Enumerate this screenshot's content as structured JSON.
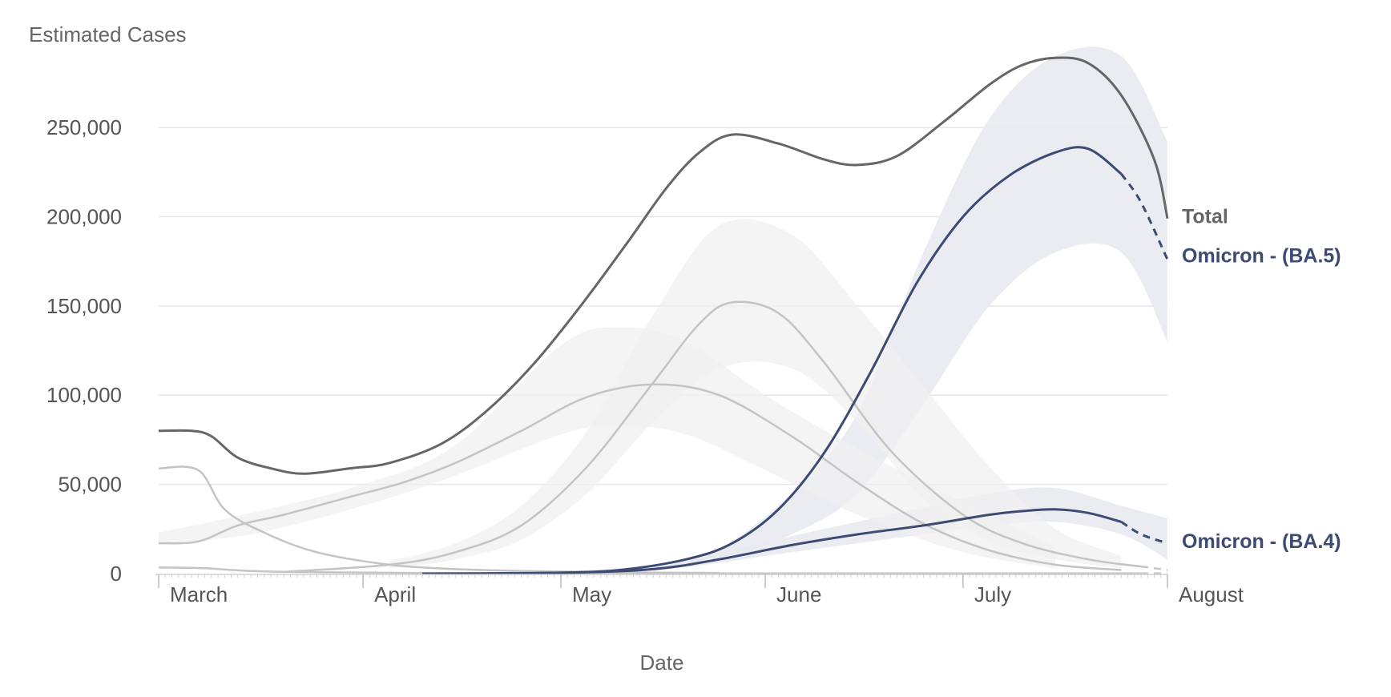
{
  "chart_data": {
    "type": "line",
    "ylabel": "Estimated Cases",
    "xlabel": "Date",
    "ylim": [
      0,
      290000
    ],
    "y_ticks": [
      0,
      50000,
      100000,
      150000,
      200000,
      250000
    ],
    "y_tick_labels": [
      "0",
      "50,000",
      "100,000",
      "150,000",
      "200,000",
      "250,000"
    ],
    "x_range": [
      "2022-03-01",
      "2022-08-01"
    ],
    "x_ticks": [
      "2022-03-01",
      "2022-04-01",
      "2022-05-01",
      "2022-06-01",
      "2022-07-01",
      "2022-08-01"
    ],
    "x_tick_labels": [
      "March",
      "April",
      "May",
      "June",
      "July",
      "August"
    ],
    "grid": true,
    "legend": "none",
    "colors": {
      "total": "#666666",
      "highlight": "#3d4a72",
      "other": "#c4c4c4",
      "band_highlight": "#e8eaf0",
      "band_other": "#f0f0f0"
    },
    "series": [
      {
        "name": "Total",
        "style": "total",
        "x": [
          "2022-03-01",
          "2022-03-06",
          "2022-03-09",
          "2022-03-13",
          "2022-03-18",
          "2022-03-23",
          "2022-03-30",
          "2022-04-05",
          "2022-04-13",
          "2022-04-20",
          "2022-04-27",
          "2022-05-04",
          "2022-05-11",
          "2022-05-17",
          "2022-05-22",
          "2022-05-27",
          "2022-06-03",
          "2022-06-10",
          "2022-06-15",
          "2022-06-21",
          "2022-06-28",
          "2022-07-05",
          "2022-07-10",
          "2022-07-15",
          "2022-07-20",
          "2022-07-25",
          "2022-07-30",
          "2022-08-01"
        ],
        "y": [
          80000,
          80000,
          77000,
          65000,
          59000,
          56000,
          59000,
          62000,
          73000,
          92000,
          118000,
          150000,
          185000,
          216000,
          236000,
          246000,
          241000,
          232000,
          229000,
          234000,
          253000,
          274000,
          285000,
          289000,
          286000,
          268000,
          232000,
          199000
        ],
        "dashed_from": null
      },
      {
        "name": "Omicron - (BA.5)",
        "style": "highlight",
        "x": [
          "2022-04-10",
          "2022-04-20",
          "2022-05-01",
          "2022-05-10",
          "2022-05-20",
          "2022-05-27",
          "2022-06-03",
          "2022-06-10",
          "2022-06-17",
          "2022-06-24",
          "2022-07-01",
          "2022-07-08",
          "2022-07-15",
          "2022-07-20",
          "2022-07-25",
          "2022-07-28",
          "2022-08-01"
        ],
        "y": [
          0,
          0,
          500,
          2000,
          8000,
          17000,
          36000,
          68000,
          113000,
          163000,
          200000,
          223000,
          236000,
          238000,
          224000,
          208000,
          176000
        ],
        "dashed_from": "2022-07-25"
      },
      {
        "name": "Omicron - (BA.4)",
        "style": "highlight",
        "x": [
          "2022-04-10",
          "2022-05-01",
          "2022-05-15",
          "2022-05-25",
          "2022-06-05",
          "2022-06-15",
          "2022-06-25",
          "2022-07-05",
          "2022-07-10",
          "2022-07-15",
          "2022-07-20",
          "2022-07-25",
          "2022-07-28",
          "2022-08-01"
        ],
        "y": [
          0,
          500,
          2500,
          8000,
          16000,
          22000,
          27000,
          33000,
          35000,
          36000,
          34000,
          29000,
          22000,
          17000
        ],
        "dashed_from": "2022-07-25"
      },
      {
        "name": "",
        "style": "other",
        "x": [
          "2022-03-01",
          "2022-03-07",
          "2022-03-13",
          "2022-03-20",
          "2022-03-30",
          "2022-04-07",
          "2022-04-15",
          "2022-04-25",
          "2022-05-05",
          "2022-05-15",
          "2022-05-25",
          "2022-06-05",
          "2022-06-15",
          "2022-06-25",
          "2022-07-05",
          "2022-07-15",
          "2022-07-25"
        ],
        "y": [
          17000,
          18000,
          27000,
          33000,
          43000,
          51000,
          62000,
          80000,
          99000,
          106000,
          100000,
          77000,
          51000,
          28000,
          13000,
          5000,
          2000
        ],
        "dashed_from": null
      },
      {
        "name": "",
        "style": "other",
        "x": [
          "2022-03-01",
          "2022-03-07",
          "2022-03-11",
          "2022-03-17",
          "2022-03-25",
          "2022-04-05",
          "2022-04-15",
          "2022-04-25",
          "2022-05-05",
          "2022-05-15",
          "2022-05-25"
        ],
        "y": [
          59000,
          58000,
          36000,
          23000,
          12000,
          5000,
          2500,
          1500,
          1000,
          600,
          400
        ],
        "dashed_from": null
      },
      {
        "name": "",
        "style": "other",
        "x": [
          "2022-03-20",
          "2022-04-05",
          "2022-04-15",
          "2022-04-25",
          "2022-05-05",
          "2022-05-15",
          "2022-05-22",
          "2022-05-27",
          "2022-06-03",
          "2022-06-10",
          "2022-06-20",
          "2022-07-01",
          "2022-07-10",
          "2022-07-20",
          "2022-07-28",
          "2022-08-01"
        ],
        "y": [
          1000,
          5000,
          12000,
          27000,
          60000,
          107000,
          140000,
          152000,
          146000,
          118000,
          69000,
          33000,
          17000,
          8000,
          4000,
          2000
        ],
        "dashed_from": "2022-07-28"
      },
      {
        "name": "",
        "style": "other",
        "x": [
          "2022-03-01",
          "2022-03-08",
          "2022-03-15",
          "2022-03-25",
          "2022-04-10",
          "2022-05-01",
          "2022-06-01",
          "2022-07-01",
          "2022-07-28",
          "2022-08-01"
        ],
        "y": [
          3500,
          3000,
          1500,
          800,
          300,
          200,
          100,
          100,
          100,
          100
        ],
        "dashed_from": "2022-07-28"
      }
    ],
    "bands": [
      {
        "style": "highlight",
        "x": [
          "2022-05-01",
          "2022-05-15",
          "2022-05-25",
          "2022-06-05",
          "2022-06-15",
          "2022-06-25",
          "2022-07-05",
          "2022-07-15",
          "2022-07-25",
          "2022-08-01"
        ],
        "lower": [
          0,
          3000,
          9000,
          22000,
          45000,
          95000,
          150000,
          180000,
          180000,
          130000
        ],
        "upper": [
          1000,
          5000,
          14000,
          45000,
          90000,
          180000,
          255000,
          290000,
          290000,
          242000
        ]
      },
      {
        "style": "highlight",
        "x": [
          "2022-05-15",
          "2022-05-25",
          "2022-06-05",
          "2022-06-15",
          "2022-06-25",
          "2022-07-05",
          "2022-07-15",
          "2022-07-25",
          "2022-08-01"
        ],
        "lower": [
          1500,
          6000,
          12000,
          17000,
          22000,
          27000,
          29000,
          22000,
          8000
        ],
        "upper": [
          3500,
          11000,
          21000,
          29000,
          37000,
          45000,
          48000,
          38000,
          31000
        ]
      },
      {
        "style": "other",
        "x": [
          "2022-03-01",
          "2022-03-15",
          "2022-04-01",
          "2022-04-15",
          "2022-05-01",
          "2022-05-10",
          "2022-05-20",
          "2022-06-01",
          "2022-06-15",
          "2022-07-01",
          "2022-07-15"
        ],
        "lower": [
          17000,
          22000,
          38000,
          55000,
          78000,
          83000,
          78000,
          58000,
          33000,
          12000,
          3000
        ],
        "upper": [
          23000,
          34000,
          50000,
          72000,
          128000,
          138000,
          130000,
          100000,
          70000,
          40000,
          15000
        ]
      },
      {
        "style": "other",
        "x": [
          "2022-04-05",
          "2022-04-15",
          "2022-04-25",
          "2022-05-05",
          "2022-05-15",
          "2022-05-25",
          "2022-06-05",
          "2022-06-15",
          "2022-06-25",
          "2022-07-05",
          "2022-07-15",
          "2022-07-25"
        ],
        "lower": [
          3000,
          8000,
          19000,
          45000,
          85000,
          115000,
          115000,
          85000,
          42000,
          18000,
          8000,
          3000
        ],
        "upper": [
          7000,
          17000,
          38000,
          80000,
          145000,
          195000,
          190000,
          150000,
          105000,
          60000,
          25000,
          10000
        ]
      }
    ],
    "end_labels": [
      {
        "text": "Total",
        "style": "total",
        "y": 200000
      },
      {
        "text": "Omicron - (BA.5)",
        "style": "highlight",
        "y": 178000
      },
      {
        "text": "Omicron - (BA.4)",
        "style": "highlight",
        "y": 18000
      }
    ]
  }
}
